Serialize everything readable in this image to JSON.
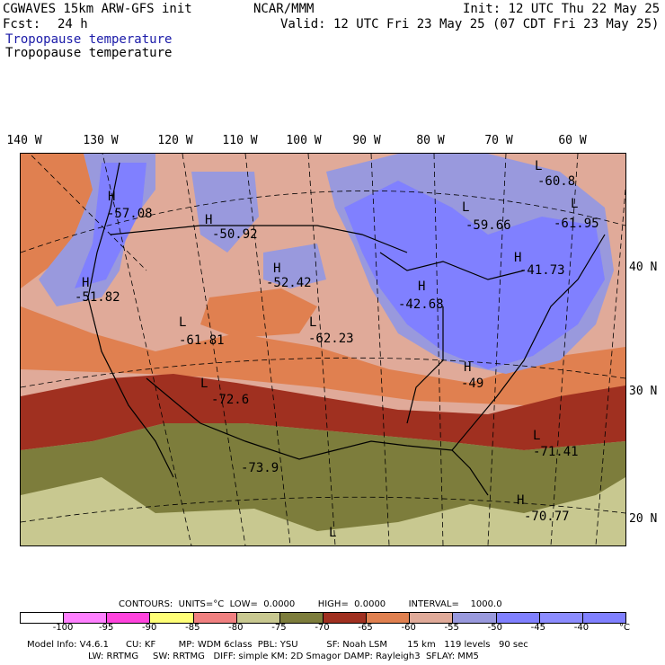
{
  "header": {
    "model": "CGWAVES 15km ARW-GFS init",
    "center": "NCAR/MMM",
    "init": "Init: 12 UTC Thu 22 May 25",
    "fcst_label": "Fcst:",
    "fcst_value": "24 h",
    "valid": "Valid: 12 UTC Fri 23 May 25 (07 CDT Fri 23 May 25)",
    "field_blue": "Tropopause temperature",
    "field_black": "Tropopause temperature"
  },
  "longitudes": [
    "140 W",
    "130 W",
    "120 W",
    "110 W",
    "100 W",
    "90 W",
    "80 W",
    "70 W",
    "60 W"
  ],
  "latitudes": [
    "40 N",
    "30 N",
    "20 N"
  ],
  "map_labels": [
    {
      "hl": "H",
      "val": "-57.08"
    },
    {
      "hl": "H",
      "val": "-50.92"
    },
    {
      "hl": "H",
      "val": "-51.82"
    },
    {
      "hl": "H",
      "val": "-52.42"
    },
    {
      "hl": "L",
      "val": "-61.81"
    },
    {
      "hl": "L",
      "val": "-62.23"
    },
    {
      "hl": "L",
      "val": "-72.6"
    },
    {
      "hl": "",
      "val": "-73.9"
    },
    {
      "hl": "L",
      "val": "-59.66"
    },
    {
      "hl": "L",
      "val": "-60.8"
    },
    {
      "hl": "L",
      "val": "-61.95"
    },
    {
      "hl": "H",
      "val": "-41.73"
    },
    {
      "hl": "H",
      "val": "-42.68"
    },
    {
      "hl": "H",
      "val": "-49"
    },
    {
      "hl": "L",
      "val": "-71.41"
    },
    {
      "hl": "H",
      "val": "-70.77"
    },
    {
      "hl": "L",
      "val": ""
    }
  ],
  "contours_line": "CONTOURS:  UNITS=°C  LOW=  0.0000        HIGH=  0.0000        INTERVAL=    1000.0",
  "colorbar": {
    "colors": [
      "#ffffff",
      "#ff80ff",
      "#ff44dd",
      "#ffff77",
      "#f08080",
      "#c8c890",
      "#7d7d3c",
      "#a03020",
      "#e08050",
      "#e0aa99",
      "#9999dd",
      "#8080ff",
      "#8c8cff",
      "#8080ff"
    ],
    "ticks": [
      "-100",
      "-95",
      "-90",
      "-85",
      "-80",
      "-75",
      "-70",
      "-65",
      "-60",
      "-55",
      "-50",
      "-45",
      "-40",
      "°C"
    ]
  },
  "footer": {
    "line1": "Model Info: V4.6.1      CU: KF        MP: WDM 6class  PBL: YSU          SF: Noah LSM       15 km   119 levels   90 sec",
    "line2": "LW: RRTMG     SW: RRTMG   DIFF: simple KM: 2D Smagor DAMP: Rayleigh3  SFLAY: MM5"
  }
}
